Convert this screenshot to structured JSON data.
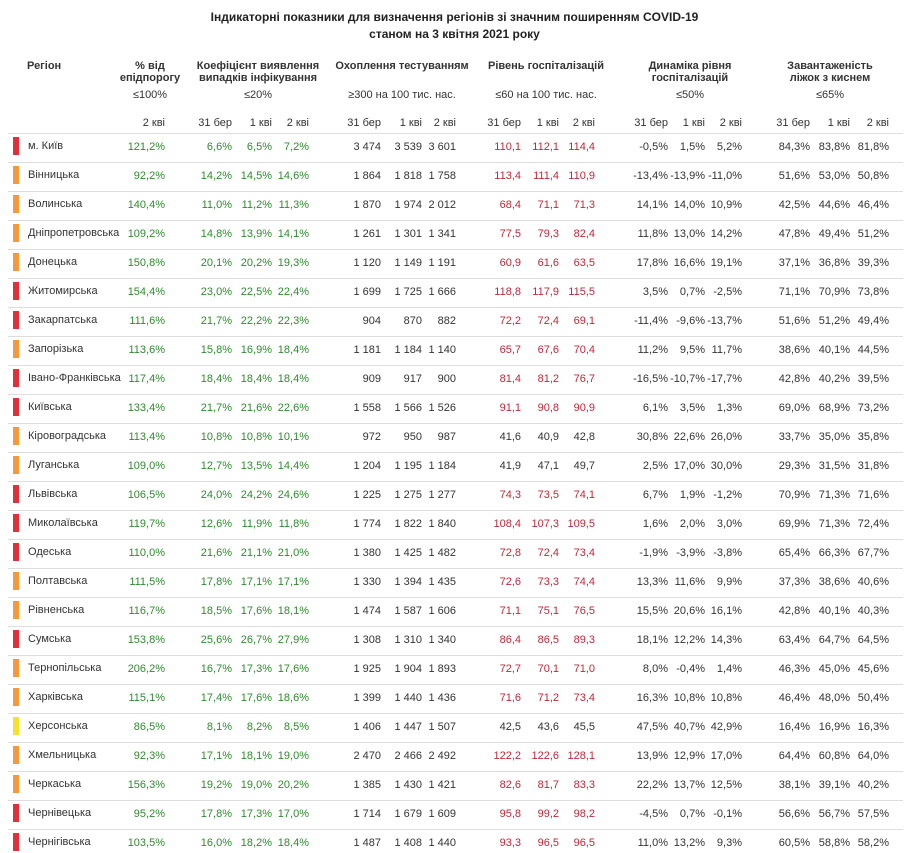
{
  "title": [
    "Індикаторні показники для визначення регіонів зі значним поширенням COVID-19",
    "станом на 3 квітня 2021 року"
  ],
  "header": {
    "region": "Регіон",
    "groups": [
      {
        "title": [
          "% від",
          "епідпорогу"
        ],
        "threshold": "≤100%",
        "periods": [
          "2 кві"
        ],
        "color": "#2e8b2e"
      },
      {
        "title": [
          "Коефіцієнт виявлення",
          "випадків інфікування"
        ],
        "threshold": "≤20%",
        "periods": [
          "31 бер",
          "1 кві",
          "2 кві"
        ],
        "color": "#2e8b2e"
      },
      {
        "title": [
          "Охоплення тестуванням"
        ],
        "threshold": "≥300 на 100 тис. нас.",
        "periods": [
          "31 бер",
          "1 кві",
          "2 кві"
        ],
        "color": "#333333"
      },
      {
        "title": [
          "Рівень госпіталізацій"
        ],
        "threshold": "≤60 на 100 тис. нас.",
        "periods": [
          "31 бер",
          "1 кві",
          "2 кві"
        ],
        "color": "row"
      },
      {
        "title": [
          "Динаміка рівня",
          "госпіталізацій"
        ],
        "threshold": "≤50%",
        "periods": [
          "31 бер",
          "1 кві",
          "2 кві"
        ],
        "color": "#333333"
      },
      {
        "title": [
          "Завантаженість",
          "ліжок з киснем"
        ],
        "threshold": "≤65%",
        "periods": [
          "31 бер",
          "1 кві",
          "2 кві"
        ],
        "color": "#333333"
      }
    ]
  },
  "rows": [
    {
      "region": "м. Київ",
      "marker": "#e0303a",
      "hosp_color": "#c0283a",
      "cells": [
        "121,2%",
        "6,6%",
        "6,5%",
        "7,2%",
        "3 474",
        "3 539",
        "3 601",
        "110,1",
        "112,1",
        "114,4",
        "-0,5%",
        "1,5%",
        "5,2%",
        "84,3%",
        "83,8%",
        "81,8%"
      ]
    },
    {
      "region": "Вінницька",
      "marker": "#f39a3c",
      "hosp_color": "#c0283a",
      "cells": [
        "92,2%",
        "14,2%",
        "14,5%",
        "14,6%",
        "1 864",
        "1 818",
        "1 758",
        "113,4",
        "111,4",
        "110,9",
        "-13,4%",
        "-13,9%",
        "-11,0%",
        "51,6%",
        "53,0%",
        "50,8%"
      ]
    },
    {
      "region": "Волинська",
      "marker": "#f39a3c",
      "hosp_color": "#c0283a",
      "cells": [
        "140,4%",
        "11,0%",
        "11,2%",
        "11,3%",
        "1 870",
        "1 974",
        "2 012",
        "68,4",
        "71,1",
        "71,3",
        "14,1%",
        "14,0%",
        "10,9%",
        "42,5%",
        "44,6%",
        "46,4%"
      ]
    },
    {
      "region": "Дніпропетровська",
      "marker": "#f39a3c",
      "hosp_color": "#c0283a",
      "cells": [
        "109,2%",
        "14,8%",
        "13,9%",
        "14,1%",
        "1 261",
        "1 301",
        "1 341",
        "77,5",
        "79,3",
        "82,4",
        "11,8%",
        "13,0%",
        "14,2%",
        "47,8%",
        "49,4%",
        "51,2%"
      ]
    },
    {
      "region": "Донецька",
      "marker": "#f39a3c",
      "hosp_color": "#c0283a",
      "cells": [
        "150,8%",
        "20,1%",
        "20,2%",
        "19,3%",
        "1 120",
        "1 149",
        "1 191",
        "60,9",
        "61,6",
        "63,5",
        "17,8%",
        "16,6%",
        "19,1%",
        "37,1%",
        "36,8%",
        "39,3%"
      ]
    },
    {
      "region": "Житомирська",
      "marker": "#e0303a",
      "hosp_color": "#c0283a",
      "cells": [
        "154,4%",
        "23,0%",
        "22,5%",
        "22,4%",
        "1 699",
        "1 725",
        "1 666",
        "118,8",
        "117,9",
        "115,5",
        "3,5%",
        "0,7%",
        "-2,5%",
        "71,1%",
        "70,9%",
        "73,8%"
      ]
    },
    {
      "region": "Закарпатська",
      "marker": "#e0303a",
      "hosp_color": "#c0283a",
      "cells": [
        "111,6%",
        "21,7%",
        "22,2%",
        "22,3%",
        "904",
        "870",
        "882",
        "72,2",
        "72,4",
        "69,1",
        "-11,4%",
        "-9,6%",
        "-13,7%",
        "51,6%",
        "51,2%",
        "49,4%"
      ]
    },
    {
      "region": "Запорізька",
      "marker": "#f39a3c",
      "hosp_color": "#c0283a",
      "cells": [
        "113,6%",
        "15,8%",
        "16,9%",
        "18,4%",
        "1 181",
        "1 184",
        "1 140",
        "65,7",
        "67,6",
        "70,4",
        "11,2%",
        "9,5%",
        "11,7%",
        "38,6%",
        "40,1%",
        "44,5%"
      ]
    },
    {
      "region": "Івано-Франківська",
      "marker": "#e0303a",
      "hosp_color": "#c0283a",
      "cells": [
        "117,4%",
        "18,4%",
        "18,4%",
        "18,4%",
        "909",
        "917",
        "900",
        "81,4",
        "81,2",
        "76,7",
        "-16,5%",
        "-10,7%",
        "-17,7%",
        "42,8%",
        "40,2%",
        "39,5%"
      ]
    },
    {
      "region": "Київська",
      "marker": "#e0303a",
      "hosp_color": "#c0283a",
      "cells": [
        "133,4%",
        "21,7%",
        "21,6%",
        "22,6%",
        "1 558",
        "1 566",
        "1 526",
        "91,1",
        "90,8",
        "90,9",
        "6,1%",
        "3,5%",
        "1,3%",
        "69,0%",
        "68,9%",
        "73,2%"
      ]
    },
    {
      "region": "Кіровоградська",
      "marker": "#f39a3c",
      "hosp_color": "#333333",
      "cells": [
        "113,4%",
        "10,8%",
        "10,8%",
        "10,1%",
        "972",
        "950",
        "987",
        "41,6",
        "40,9",
        "42,8",
        "30,8%",
        "22,6%",
        "26,0%",
        "33,7%",
        "35,0%",
        "35,8%"
      ]
    },
    {
      "region": "Луганська",
      "marker": "#f39a3c",
      "hosp_color": "#333333",
      "cells": [
        "109,0%",
        "12,7%",
        "13,5%",
        "14,4%",
        "1 204",
        "1 195",
        "1 184",
        "41,9",
        "47,1",
        "49,7",
        "2,5%",
        "17,0%",
        "30,0%",
        "29,3%",
        "31,5%",
        "31,8%"
      ]
    },
    {
      "region": "Львівська",
      "marker": "#e0303a",
      "hosp_color": "#c0283a",
      "cells": [
        "106,5%",
        "24,0%",
        "24,2%",
        "24,6%",
        "1 225",
        "1 275",
        "1 277",
        "74,3",
        "73,5",
        "74,1",
        "6,7%",
        "1,9%",
        "-1,2%",
        "70,9%",
        "71,3%",
        "71,6%"
      ]
    },
    {
      "region": "Миколаївська",
      "marker": "#e0303a",
      "hosp_color": "#c0283a",
      "cells": [
        "119,7%",
        "12,6%",
        "11,9%",
        "11,8%",
        "1 774",
        "1 822",
        "1 840",
        "108,4",
        "107,3",
        "109,5",
        "1,6%",
        "2,0%",
        "3,0%",
        "69,9%",
        "71,3%",
        "72,4%"
      ]
    },
    {
      "region": "Одеська",
      "marker": "#e0303a",
      "hosp_color": "#c0283a",
      "cells": [
        "110,0%",
        "21,6%",
        "21,1%",
        "21,0%",
        "1 380",
        "1 425",
        "1 482",
        "72,8",
        "72,4",
        "73,4",
        "-1,9%",
        "-3,9%",
        "-3,8%",
        "65,4%",
        "66,3%",
        "67,7%"
      ]
    },
    {
      "region": "Полтавська",
      "marker": "#f39a3c",
      "hosp_color": "#c0283a",
      "cells": [
        "111,5%",
        "17,8%",
        "17,1%",
        "17,1%",
        "1 330",
        "1 394",
        "1 435",
        "72,6",
        "73,3",
        "74,4",
        "13,3%",
        "11,6%",
        "9,9%",
        "37,3%",
        "38,6%",
        "40,6%"
      ]
    },
    {
      "region": "Рівненська",
      "marker": "#f39a3c",
      "hosp_color": "#c0283a",
      "cells": [
        "116,7%",
        "18,5%",
        "17,6%",
        "18,1%",
        "1 474",
        "1 587",
        "1 606",
        "71,1",
        "75,1",
        "76,5",
        "15,5%",
        "20,6%",
        "16,1%",
        "42,8%",
        "40,1%",
        "40,3%"
      ]
    },
    {
      "region": "Сумська",
      "marker": "#e0303a",
      "hosp_color": "#c0283a",
      "cells": [
        "153,8%",
        "25,6%",
        "26,7%",
        "27,9%",
        "1 308",
        "1 310",
        "1 340",
        "86,4",
        "86,5",
        "89,3",
        "18,1%",
        "12,2%",
        "14,3%",
        "63,4%",
        "64,7%",
        "64,5%"
      ]
    },
    {
      "region": "Тернопільська",
      "marker": "#f39a3c",
      "hosp_color": "#c0283a",
      "cells": [
        "206,2%",
        "16,7%",
        "17,3%",
        "17,6%",
        "1 925",
        "1 904",
        "1 893",
        "72,7",
        "70,1",
        "71,0",
        "8,0%",
        "-0,4%",
        "1,4%",
        "46,3%",
        "45,0%",
        "45,6%"
      ]
    },
    {
      "region": "Харківська",
      "marker": "#f39a3c",
      "hosp_color": "#c0283a",
      "cells": [
        "115,1%",
        "17,4%",
        "17,6%",
        "18,6%",
        "1 399",
        "1 440",
        "1 436",
        "71,6",
        "71,2",
        "73,4",
        "16,3%",
        "10,8%",
        "10,8%",
        "46,4%",
        "48,0%",
        "50,4%"
      ]
    },
    {
      "region": "Херсонська",
      "marker": "#f7e12a",
      "hosp_color": "#333333",
      "cells": [
        "86,5%",
        "8,1%",
        "8,2%",
        "8,5%",
        "1 406",
        "1 447",
        "1 507",
        "42,5",
        "43,6",
        "45,5",
        "47,5%",
        "40,7%",
        "42,9%",
        "16,4%",
        "16,9%",
        "16,3%"
      ]
    },
    {
      "region": "Хмельницька",
      "marker": "#f39a3c",
      "hosp_color": "#c0283a",
      "cells": [
        "92,3%",
        "17,1%",
        "18,1%",
        "19,0%",
        "2 470",
        "2 466",
        "2 492",
        "122,2",
        "122,6",
        "128,1",
        "13,9%",
        "12,9%",
        "17,0%",
        "64,4%",
        "60,8%",
        "64,0%"
      ]
    },
    {
      "region": "Черкаська",
      "marker": "#f39a3c",
      "hosp_color": "#c0283a",
      "cells": [
        "156,3%",
        "19,2%",
        "19,0%",
        "20,2%",
        "1 385",
        "1 430",
        "1 421",
        "82,6",
        "81,7",
        "83,3",
        "22,2%",
        "13,7%",
        "12,5%",
        "38,1%",
        "39,1%",
        "40,2%"
      ]
    },
    {
      "region": "Чернівецька",
      "marker": "#e0303a",
      "hosp_color": "#c0283a",
      "cells": [
        "95,2%",
        "17,8%",
        "17,3%",
        "17,0%",
        "1 714",
        "1 679",
        "1 609",
        "95,8",
        "99,2",
        "98,2",
        "-4,5%",
        "0,7%",
        "-0,1%",
        "56,6%",
        "56,7%",
        "57,5%"
      ]
    },
    {
      "region": "Чернігівська",
      "marker": "#e0303a",
      "hosp_color": "#c0283a",
      "cells": [
        "103,5%",
        "16,0%",
        "18,2%",
        "18,4%",
        "1 487",
        "1 408",
        "1 440",
        "93,3",
        "96,5",
        "96,5",
        "11,0%",
        "13,2%",
        "9,3%",
        "60,5%",
        "58,8%",
        "58,2%"
      ]
    }
  ]
}
